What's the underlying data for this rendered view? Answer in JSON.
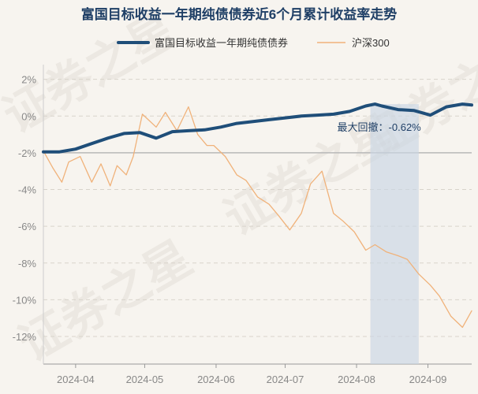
{
  "chart_data": {
    "type": "line",
    "title": "富国目标收益一年期纯债债券近6个月累计收益率走势",
    "xlabel": "",
    "ylabel": "",
    "ylim": [
      -13.5,
      2.8
    ],
    "y_ticks": [
      2,
      0,
      -2,
      -4,
      -6,
      -8,
      -10,
      -12
    ],
    "y_tick_labels": [
      "2%",
      "0%",
      "-2%",
      "-4%",
      "-6%",
      "-8%",
      "-10%",
      "-12%"
    ],
    "x_ticks": [
      "2024-04",
      "2024-05",
      "2024-06",
      "2024-07",
      "2024-08",
      "2024-09"
    ],
    "x_range": [
      "2024-03-18",
      "2024-09-20"
    ],
    "grid": "horizontal dashed",
    "legend_position": "top",
    "series": [
      {
        "name": "富国目标收益一年期纯债债券",
        "color": "#1f4e79",
        "x": [
          "2024-03-18",
          "2024-03-25",
          "2024-04-01",
          "2024-04-08",
          "2024-04-15",
          "2024-04-22",
          "2024-04-29",
          "2024-05-06",
          "2024-05-13",
          "2024-05-20",
          "2024-05-27",
          "2024-06-03",
          "2024-06-10",
          "2024-06-17",
          "2024-06-24",
          "2024-07-01",
          "2024-07-08",
          "2024-07-15",
          "2024-07-22",
          "2024-07-29",
          "2024-08-05",
          "2024-08-09",
          "2024-08-12",
          "2024-08-19",
          "2024-08-26",
          "2024-09-02",
          "2024-09-09",
          "2024-09-16",
          "2024-09-20"
        ],
        "values": [
          -1.95,
          -1.95,
          -1.8,
          -1.5,
          -1.2,
          -0.95,
          -0.9,
          -1.2,
          -0.85,
          -0.8,
          -0.75,
          -0.6,
          -0.4,
          -0.3,
          -0.2,
          -0.1,
          0.0,
          0.05,
          0.1,
          0.25,
          0.55,
          0.65,
          0.55,
          0.35,
          0.3,
          0.05,
          0.5,
          0.65,
          0.6
        ]
      },
      {
        "name": "沪深300",
        "color": "#f0b27a",
        "x": [
          "2024-03-18",
          "2024-03-22",
          "2024-03-26",
          "2024-03-29",
          "2024-04-03",
          "2024-04-08",
          "2024-04-12",
          "2024-04-16",
          "2024-04-19",
          "2024-04-23",
          "2024-04-26",
          "2024-04-30",
          "2024-05-06",
          "2024-05-10",
          "2024-05-15",
          "2024-05-20",
          "2024-05-24",
          "2024-05-28",
          "2024-05-31",
          "2024-06-05",
          "2024-06-10",
          "2024-06-14",
          "2024-06-19",
          "2024-06-24",
          "2024-06-28",
          "2024-07-03",
          "2024-07-08",
          "2024-07-12",
          "2024-07-17",
          "2024-07-22",
          "2024-07-26",
          "2024-07-31",
          "2024-08-05",
          "2024-08-09",
          "2024-08-14",
          "2024-08-19",
          "2024-08-23",
          "2024-08-28",
          "2024-09-02",
          "2024-09-06",
          "2024-09-11",
          "2024-09-16",
          "2024-09-20"
        ],
        "values": [
          -1.9,
          -2.8,
          -3.6,
          -2.5,
          -2.2,
          -3.6,
          -2.6,
          -3.8,
          -2.7,
          -3.2,
          -2.2,
          0.1,
          -0.6,
          0.2,
          -0.8,
          0.5,
          -1.0,
          -1.6,
          -1.6,
          -2.2,
          -3.2,
          -3.5,
          -4.4,
          -4.8,
          -5.4,
          -6.2,
          -5.3,
          -3.7,
          -3.0,
          -5.3,
          -5.7,
          -6.3,
          -7.3,
          -7.0,
          -7.4,
          -7.6,
          -7.8,
          -8.6,
          -9.2,
          -9.8,
          -10.9,
          -11.5,
          -10.6
        ]
      }
    ],
    "annotation": {
      "label": "最大回撤：-0.62%",
      "band_start": "2024-08-07",
      "band_end": "2024-08-28"
    }
  },
  "watermark": "证券之星"
}
